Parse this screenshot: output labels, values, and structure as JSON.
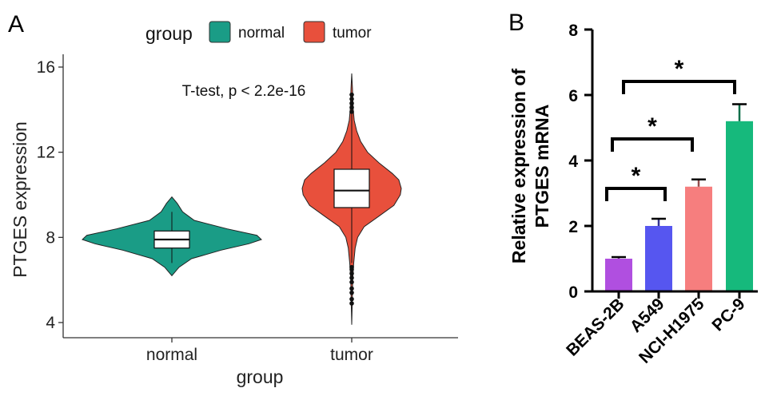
{
  "panels": {
    "a_label": "A",
    "b_label": "B"
  },
  "colors": {
    "normal": "#1a9c86",
    "tumor": "#e8503c",
    "axis": "#333333",
    "outlier": "#111111"
  },
  "chart_data": [
    {
      "type": "violin",
      "panel": "A",
      "title": "",
      "xlabel": "group",
      "ylabel": "PTGES expression",
      "ylim": [
        3.2,
        16.7
      ],
      "yticks": [
        4,
        8,
        12,
        16
      ],
      "categories": [
        "normal",
        "tumor"
      ],
      "legend": {
        "title": "group",
        "position": "top",
        "entries": [
          "normal",
          "tumor"
        ]
      },
      "annotation": "T-test, p < 2.2e-16",
      "series": [
        {
          "name": "normal",
          "color": "#1a9c86",
          "box": {
            "q1": 7.5,
            "median": 7.9,
            "q3": 8.3,
            "whisker_low": 6.8,
            "whisker_high": 9.2
          },
          "violin_min": 6.2,
          "violin_max": 9.9,
          "density": [
            [
              6.2,
              0.0
            ],
            [
              6.6,
              0.08
            ],
            [
              7.0,
              0.22
            ],
            [
              7.4,
              0.55
            ],
            [
              7.7,
              0.86
            ],
            [
              7.9,
              1.0
            ],
            [
              8.1,
              0.95
            ],
            [
              8.4,
              0.62
            ],
            [
              8.8,
              0.25
            ],
            [
              9.2,
              0.12
            ],
            [
              9.6,
              0.06
            ],
            [
              9.9,
              0.0
            ]
          ],
          "outliers": []
        },
        {
          "name": "tumor",
          "color": "#e8503c",
          "box": {
            "q1": 9.4,
            "median": 10.2,
            "q3": 11.2,
            "whisker_low": 6.8,
            "whisker_high": 13.8
          },
          "violin_min": 3.9,
          "violin_max": 15.7,
          "density": [
            [
              3.9,
              0.0
            ],
            [
              5.0,
              0.012
            ],
            [
              6.0,
              0.02
            ],
            [
              6.8,
              0.04
            ],
            [
              7.5,
              0.07
            ],
            [
              8.0,
              0.12
            ],
            [
              8.5,
              0.25
            ],
            [
              9.0,
              0.55
            ],
            [
              9.5,
              0.85
            ],
            [
              10.0,
              0.98
            ],
            [
              10.3,
              1.0
            ],
            [
              10.7,
              0.95
            ],
            [
              11.0,
              0.82
            ],
            [
              11.5,
              0.55
            ],
            [
              12.0,
              0.32
            ],
            [
              12.5,
              0.18
            ],
            [
              13.0,
              0.1
            ],
            [
              13.5,
              0.05
            ],
            [
              14.0,
              0.03
            ],
            [
              15.0,
              0.015
            ],
            [
              15.7,
              0.0
            ]
          ],
          "outliers": [
            4.9,
            5.1,
            5.4,
            5.6,
            5.9,
            6.1,
            6.3,
            6.5,
            6.6,
            13.9,
            14.1,
            14.3,
            14.5,
            14.7
          ]
        }
      ]
    },
    {
      "type": "bar",
      "panel": "B",
      "title": "",
      "xlabel": "",
      "ylabel_lines": [
        "Relative expression of",
        "PTGES mRNA"
      ],
      "ylim": [
        0,
        8
      ],
      "yticks": [
        0,
        2,
        4,
        6,
        8
      ],
      "categories": [
        "BEAS-2B",
        "A549",
        "NCI-H1975",
        "PC-9"
      ],
      "values": [
        1.0,
        2.0,
        3.2,
        5.2
      ],
      "errors": [
        0.05,
        0.22,
        0.22,
        0.52
      ],
      "colors": [
        "#b04fe0",
        "#5656f0",
        "#f67e7e",
        "#16b97c"
      ],
      "significance": [
        {
          "from": 0,
          "to": 1,
          "label": "*"
        },
        {
          "from": 0,
          "to": 2,
          "label": "*"
        },
        {
          "from": 0,
          "to": 3,
          "label": "*"
        }
      ]
    }
  ]
}
